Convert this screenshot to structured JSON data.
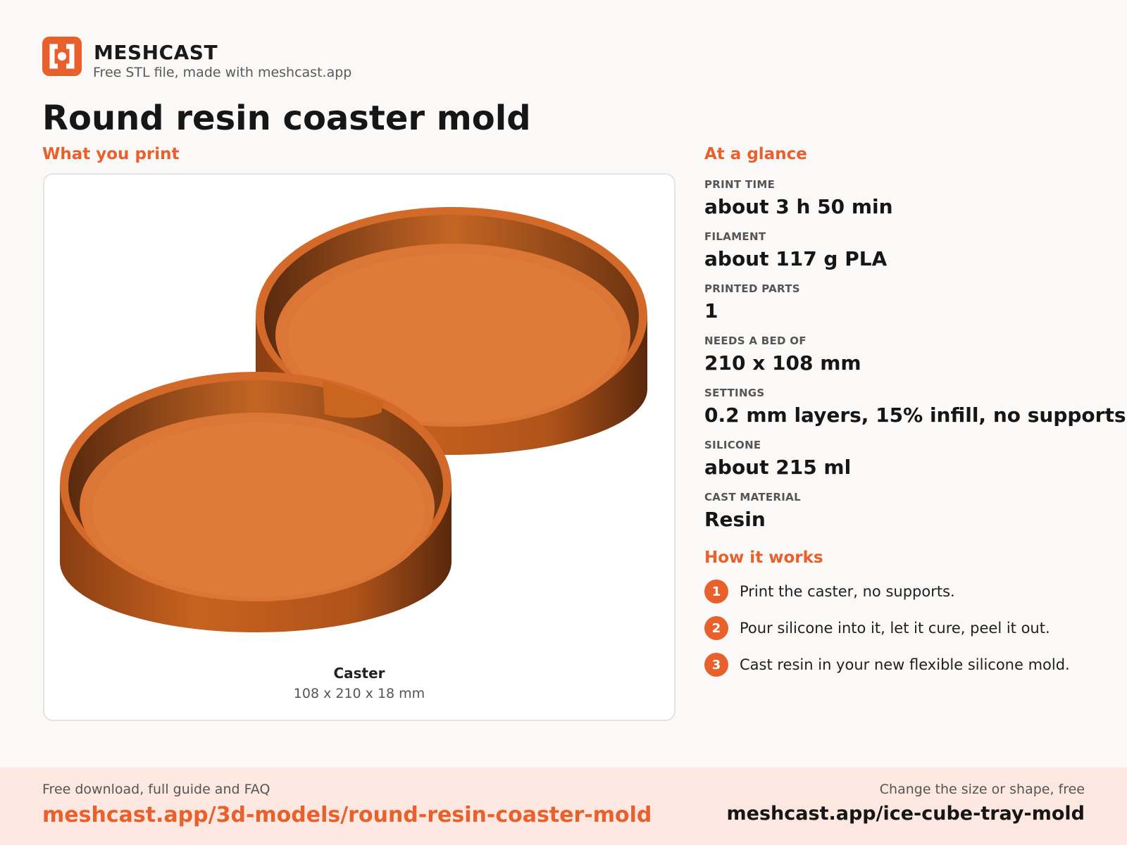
{
  "brand": {
    "logo_icon": "meshcast-logo-icon",
    "name": "MESHCAST",
    "tagline": "Free STL file, made with meshcast.app",
    "accent_color": "#e8602c"
  },
  "page_title": "Round resin coaster mold",
  "print_section": {
    "heading": "What you print",
    "part": {
      "name": "Caster",
      "dimensions": "108 x 210 x 18 mm"
    }
  },
  "glance": {
    "heading": "At a glance",
    "stats": [
      {
        "label": "PRINT TIME",
        "value": "about 3 h 50 min"
      },
      {
        "label": "FILAMENT",
        "value": "about 117 g PLA"
      },
      {
        "label": "PRINTED PARTS",
        "value": "1"
      },
      {
        "label": "NEEDS A BED OF",
        "value": "210 x 108 mm"
      },
      {
        "label": "SETTINGS",
        "value": "0.2 mm layers, 15% infill, no supports"
      },
      {
        "label": "SILICONE",
        "value": "about 215 ml"
      },
      {
        "label": "CAST MATERIAL",
        "value": "Resin"
      }
    ]
  },
  "how_it_works": {
    "heading": "How it works",
    "steps": [
      {
        "num": "1",
        "text": "Print the caster, no supports."
      },
      {
        "num": "2",
        "text": "Pour silicone into it, let it cure, peel it out."
      },
      {
        "num": "3",
        "text": "Cast resin in your new flexible silicone mold."
      }
    ]
  },
  "footer": {
    "left_label": "Free download, full guide and FAQ",
    "left_link": "meshcast.app/3d-models/round-resin-coaster-mold",
    "right_label": "Change the size or shape, free",
    "right_link": "meshcast.app/ice-cube-tray-mold"
  }
}
